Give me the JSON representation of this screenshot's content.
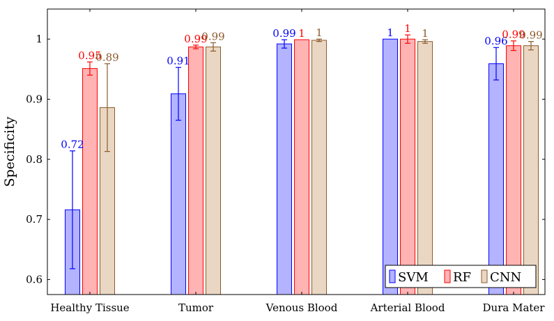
{
  "chart_data": {
    "type": "bar",
    "title": "",
    "xlabel": "",
    "ylabel": "Specificity",
    "ylim": [
      0.575,
      1.05
    ],
    "yticks": [
      0.6,
      0.7,
      0.8,
      0.9,
      1
    ],
    "ytick_labels": [
      "0.6",
      "0.7",
      "0.8",
      "0.9",
      "1"
    ],
    "grid": false,
    "legend_position": "bottom-right",
    "categories": [
      "Healthy Tissue",
      "Tumor",
      "Venous Blood",
      "Arterial Blood",
      "Dura Mater"
    ],
    "series": [
      {
        "name": "SVM",
        "fill": "#b3b3ff",
        "stroke": "#0000ff",
        "label_color": "#0000ff",
        "values": [
          0.716,
          0.909,
          0.992,
          1.0,
          0.959
        ],
        "errors": [
          0.098,
          0.044,
          0.007,
          0.0,
          0.027
        ],
        "labels": [
          "0.72",
          "0.91",
          "0.99",
          "1",
          "0.96"
        ]
      },
      {
        "name": "RF",
        "fill": "#ffb3b3",
        "stroke": "#ff0000",
        "label_color": "#ff0000",
        "values": [
          0.951,
          0.987,
          0.999,
          1.0,
          0.989
        ],
        "errors": [
          0.011,
          0.003,
          0.0,
          0.007,
          0.008
        ],
        "labels": [
          "0.95",
          "0.99",
          "1",
          "1",
          "0.99"
        ]
      },
      {
        "name": "CNN",
        "fill": "#ead7c3",
        "stroke": "#8b5a2b",
        "label_color": "#8b5a2b",
        "values": [
          0.886,
          0.987,
          0.998,
          0.996,
          0.989
        ],
        "errors": [
          0.073,
          0.007,
          0.002,
          0.003,
          0.007
        ],
        "labels": [
          "0.89",
          "0.99",
          "1",
          "1",
          "0.99"
        ]
      }
    ]
  }
}
